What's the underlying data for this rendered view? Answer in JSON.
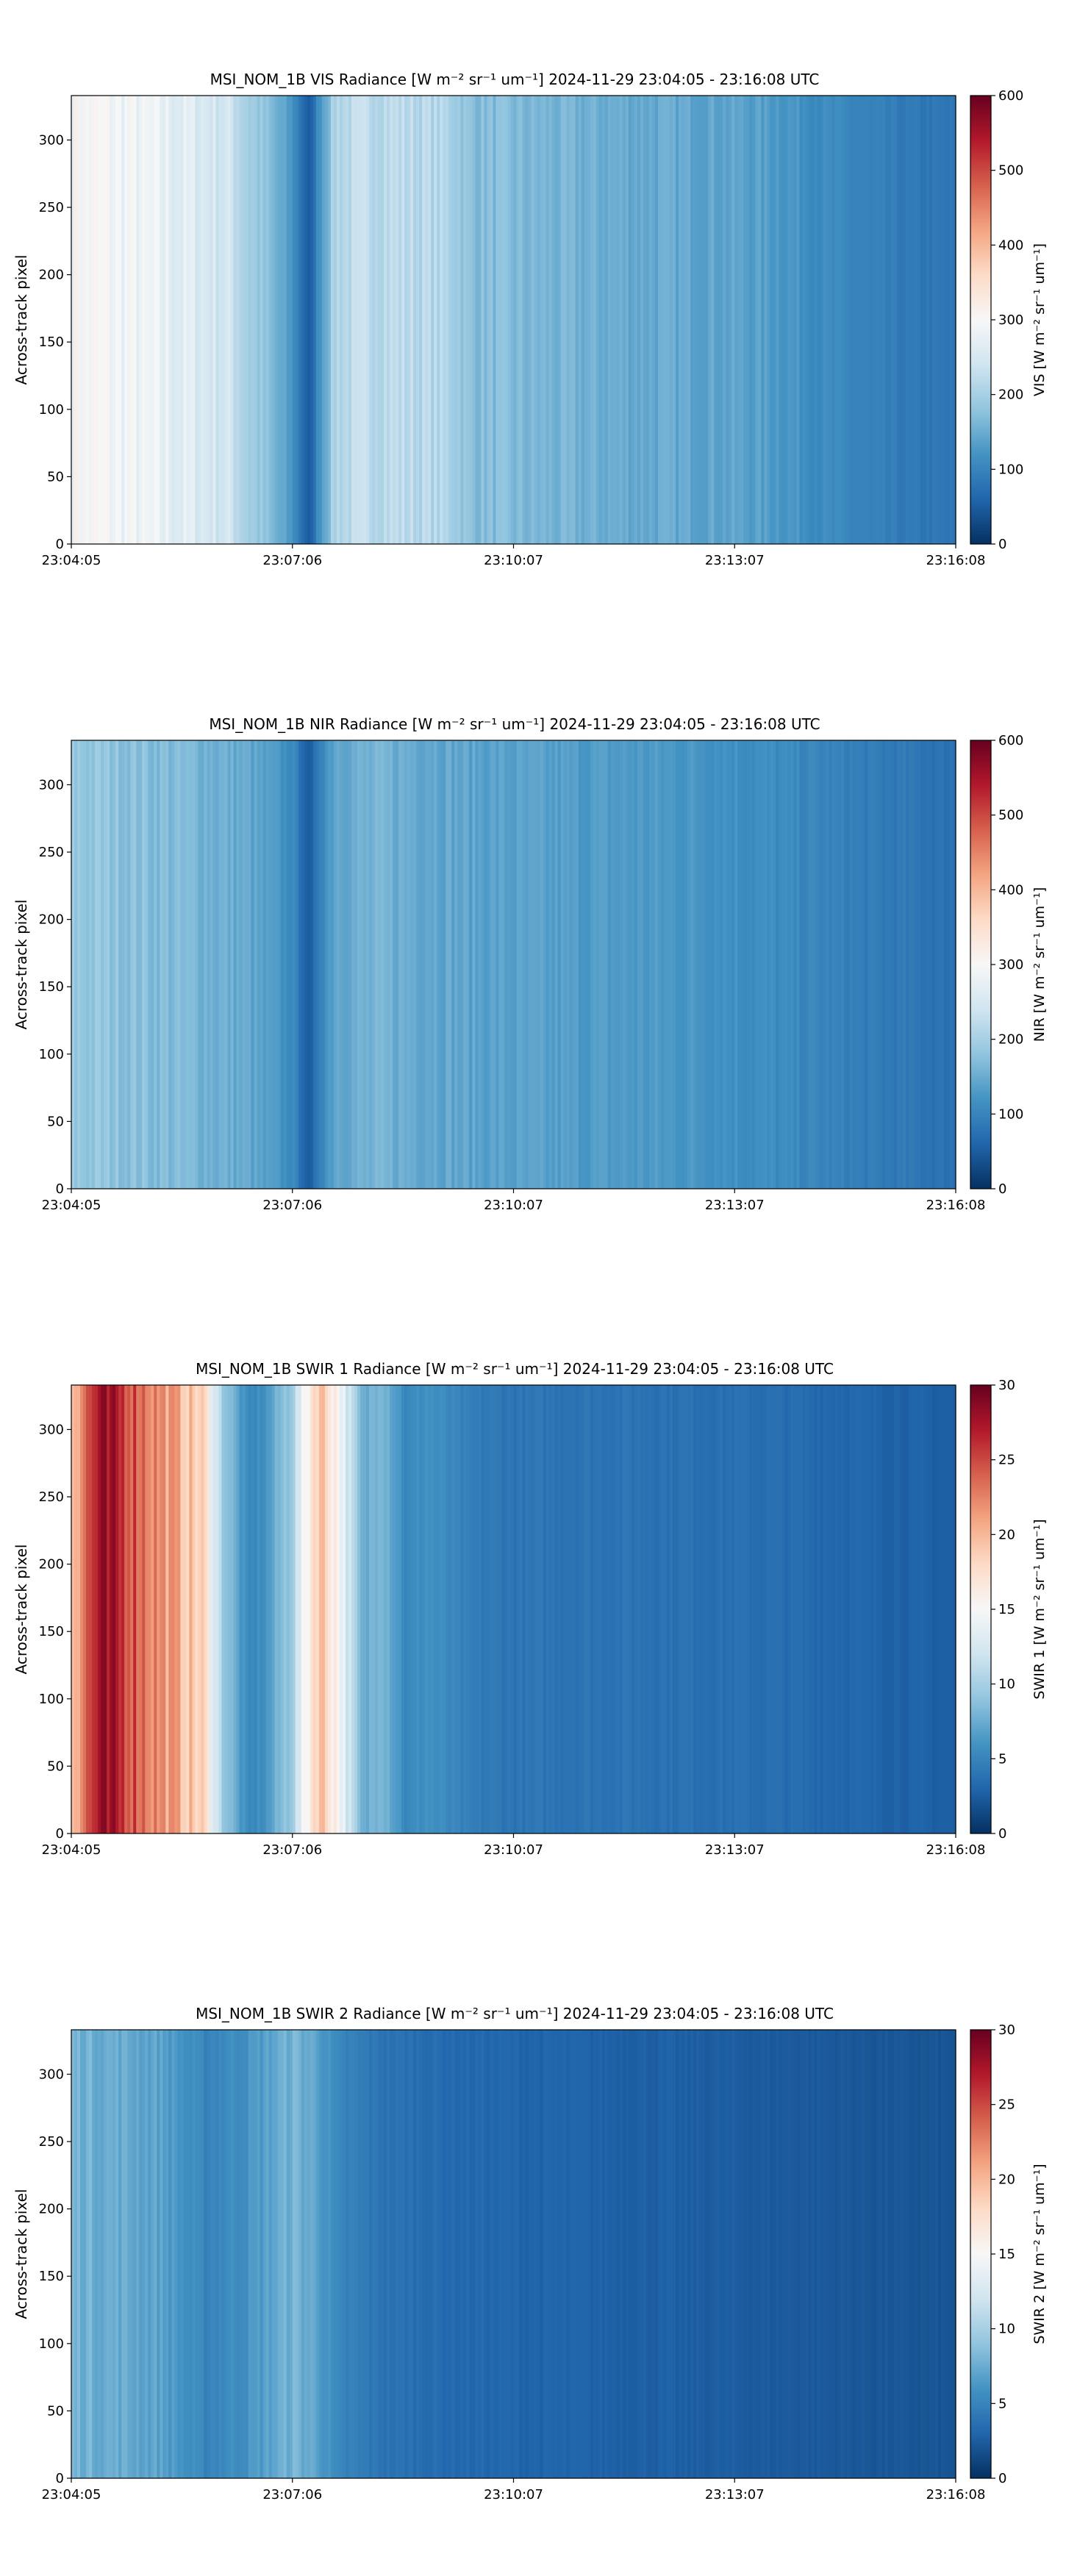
{
  "colorbar_gradient": [
    "#053061",
    "#2166ac",
    "#4393c3",
    "#92c5de",
    "#d1e5f0",
    "#f7f7f7",
    "#fddbc7",
    "#f4a582",
    "#d6604d",
    "#b2182b",
    "#67001f"
  ],
  "panels": [
    {
      "title": "MSI_NOM_1B VIS Radiance [W m⁻² sr⁻¹ um⁻¹]    2024-11-29    23:04:05 - 23:16:08 UTC",
      "ylabel": "Across-track pixel",
      "cbar_label": "VIS [W m⁻² sr⁻¹ um⁻¹]",
      "yticks": [
        "0",
        "50",
        "100",
        "150",
        "200",
        "250",
        "300"
      ],
      "xticks": [
        "23:04:05",
        "23:07:06",
        "23:10:07",
        "23:13:07",
        "23:16:08"
      ],
      "cticks": [
        "0",
        "100",
        "200",
        "300",
        "400",
        "500",
        "600"
      ]
    },
    {
      "title": "MSI_NOM_1B NIR Radiance [W m⁻² sr⁻¹ um⁻¹]    2024-11-29    23:04:05 - 23:16:08 UTC",
      "ylabel": "Across-track pixel",
      "cbar_label": "NIR [W m⁻² sr⁻¹ um⁻¹]",
      "yticks": [
        "0",
        "50",
        "100",
        "150",
        "200",
        "250",
        "300"
      ],
      "xticks": [
        "23:04:05",
        "23:07:06",
        "23:10:07",
        "23:13:07",
        "23:16:08"
      ],
      "cticks": [
        "0",
        "100",
        "200",
        "300",
        "400",
        "500",
        "600"
      ]
    },
    {
      "title": "MSI_NOM_1B SWIR 1 Radiance [W m⁻² sr⁻¹ um⁻¹]    2024-11-29    23:04:05 - 23:16:08 UTC",
      "ylabel": "Across-track pixel",
      "cbar_label": "SWIR 1 [W m⁻² sr⁻¹ um⁻¹]",
      "yticks": [
        "0",
        "50",
        "100",
        "150",
        "200",
        "250",
        "300"
      ],
      "xticks": [
        "23:04:05",
        "23:07:06",
        "23:10:07",
        "23:13:07",
        "23:16:08"
      ],
      "cticks": [
        "0",
        "5",
        "10",
        "15",
        "20",
        "25",
        "30"
      ]
    },
    {
      "title": "MSI_NOM_1B SWIR 2 Radiance [W m⁻² sr⁻¹ um⁻¹]    2024-11-29    23:04:05 - 23:16:08 UTC",
      "ylabel": "Across-track pixel",
      "cbar_label": "SWIR 2 [W m⁻² sr⁻¹ um⁻¹]",
      "yticks": [
        "0",
        "50",
        "100",
        "150",
        "200",
        "250",
        "300"
      ],
      "xticks": [
        "23:04:05",
        "23:07:06",
        "23:10:07",
        "23:13:07",
        "23:16:08"
      ],
      "cticks": [
        "0",
        "5",
        "10",
        "15",
        "20",
        "25",
        "30"
      ]
    }
  ],
  "chart_data": [
    {
      "type": "heatmap",
      "title": "MSI_NOM_1B VIS Radiance [W m⁻² sr⁻¹ um⁻¹]    2024-11-29    23:04:05 - 23:16:08 UTC",
      "xlabel": "",
      "ylabel": "Across-track pixel",
      "xlim": [
        "23:04:05",
        "23:16:08"
      ],
      "ylim": [
        0,
        333
      ],
      "colorbar_label": "VIS [W m⁻² sr⁻¹ um⁻¹]",
      "clim": [
        0,
        600
      ],
      "colormap": "RdBu_r",
      "x_tick_labels": [
        "23:04:05",
        "23:07:06",
        "23:10:07",
        "23:13:07",
        "23:16:08"
      ],
      "y_ticks": [
        0,
        50,
        100,
        150,
        200,
        250,
        300
      ],
      "colorbar_ticks": [
        0,
        100,
        200,
        300,
        400,
        500,
        600
      ],
      "profile_x_frac": [
        0.0,
        0.05,
        0.1,
        0.14,
        0.18,
        0.2,
        0.22,
        0.25,
        0.27,
        0.28,
        0.3,
        0.35,
        0.4,
        0.43,
        0.45,
        0.5,
        0.55,
        0.6,
        0.65,
        0.7,
        0.75,
        0.8,
        0.85,
        0.9,
        0.95,
        1.0
      ],
      "profile_values": [
        300,
        290,
        275,
        260,
        240,
        200,
        175,
        120,
        40,
        120,
        215,
        225,
        215,
        205,
        175,
        165,
        158,
        152,
        148,
        145,
        140,
        130,
        110,
        95,
        85,
        80
      ]
    },
    {
      "type": "heatmap",
      "title": "MSI_NOM_1B NIR Radiance [W m⁻² sr⁻¹ um⁻¹]    2024-11-29    23:04:05 - 23:16:08 UTC",
      "xlabel": "",
      "ylabel": "Across-track pixel",
      "xlim": [
        "23:04:05",
        "23:16:08"
      ],
      "ylim": [
        0,
        333
      ],
      "colorbar_label": "NIR [W m⁻² sr⁻¹ um⁻¹]",
      "clim": [
        0,
        600
      ],
      "colormap": "RdBu_r",
      "x_tick_labels": [
        "23:04:05",
        "23:07:06",
        "23:10:07",
        "23:13:07",
        "23:16:08"
      ],
      "y_ticks": [
        0,
        50,
        100,
        150,
        200,
        250,
        300
      ],
      "colorbar_ticks": [
        0,
        100,
        200,
        300,
        400,
        500,
        600
      ],
      "profile_x_frac": [
        0.0,
        0.05,
        0.1,
        0.15,
        0.2,
        0.25,
        0.27,
        0.28,
        0.3,
        0.35,
        0.4,
        0.45,
        0.5,
        0.6,
        0.7,
        0.8,
        0.9,
        1.0
      ],
      "profile_values": [
        185,
        180,
        170,
        160,
        145,
        110,
        40,
        100,
        150,
        155,
        150,
        140,
        135,
        130,
        125,
        110,
        90,
        75
      ]
    },
    {
      "type": "heatmap",
      "title": "MSI_NOM_1B SWIR 1 Radiance [W m⁻² sr⁻¹ um⁻¹]    2024-11-29    23:04:05 - 23:16:08 UTC",
      "xlabel": "",
      "ylabel": "Across-track pixel",
      "xlim": [
        "23:04:05",
        "23:16:08"
      ],
      "ylim": [
        0,
        333
      ],
      "colorbar_label": "SWIR 1 [W m⁻² sr⁻¹ um⁻¹]",
      "clim": [
        0,
        30
      ],
      "colormap": "RdBu_r",
      "x_tick_labels": [
        "23:04:05",
        "23:07:06",
        "23:10:07",
        "23:13:07",
        "23:16:08"
      ],
      "y_ticks": [
        0,
        50,
        100,
        150,
        200,
        250,
        300
      ],
      "colorbar_ticks": [
        0,
        5,
        10,
        15,
        20,
        25,
        30
      ],
      "profile_x_frac": [
        0.0,
        0.03,
        0.06,
        0.1,
        0.15,
        0.17,
        0.2,
        0.22,
        0.25,
        0.28,
        0.3,
        0.33,
        0.35,
        0.38,
        0.4,
        0.45,
        0.5,
        0.6,
        0.7,
        0.8,
        0.9,
        1.0
      ],
      "profile_values": [
        20,
        27,
        26,
        22,
        18,
        10,
        5,
        6,
        10,
        20,
        16,
        7,
        9,
        5,
        6,
        4.5,
        4,
        4,
        3.8,
        3.5,
        3,
        2.6
      ]
    },
    {
      "type": "heatmap",
      "title": "MSI_NOM_1B SWIR 2 Radiance [W m⁻² sr⁻¹ um⁻¹]    2024-11-29    23:04:05 - 23:16:08 UTC",
      "xlabel": "",
      "ylabel": "Across-track pixel",
      "xlim": [
        "23:04:05",
        "23:16:08"
      ],
      "ylim": [
        0,
        333
      ],
      "colorbar_label": "SWIR 2 [W m⁻² sr⁻¹ um⁻¹]",
      "clim": [
        0,
        30
      ],
      "colormap": "RdBu_r",
      "x_tick_labels": [
        "23:04:05",
        "23:07:06",
        "23:10:07",
        "23:13:07",
        "23:16:08"
      ],
      "y_ticks": [
        0,
        50,
        100,
        150,
        200,
        250,
        300
      ],
      "colorbar_ticks": [
        0,
        5,
        10,
        15,
        20,
        25,
        30
      ],
      "profile_x_frac": [
        0.0,
        0.05,
        0.1,
        0.15,
        0.2,
        0.25,
        0.28,
        0.3,
        0.35,
        0.4,
        0.45,
        0.5,
        0.6,
        0.7,
        0.8,
        0.9,
        1.0
      ],
      "profile_values": [
        8,
        7.5,
        7,
        5,
        6,
        8,
        7,
        5,
        4,
        3.5,
        3.2,
        3,
        2.8,
        2.6,
        2.4,
        2.2,
        2.0
      ]
    }
  ]
}
